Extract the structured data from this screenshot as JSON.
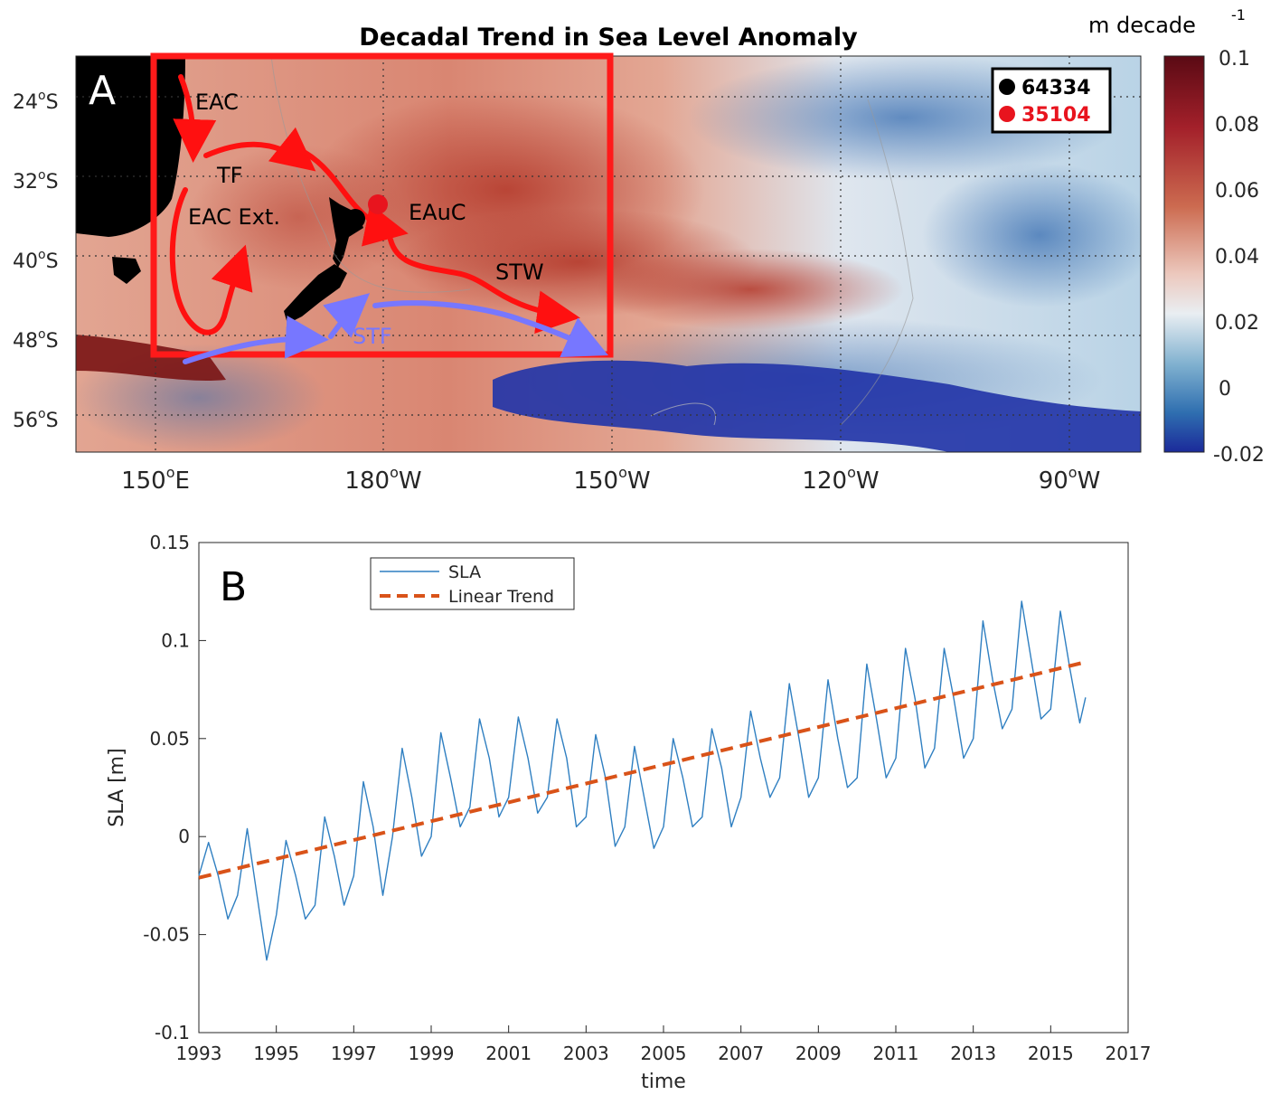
{
  "panel_a": {
    "panel_label": "A",
    "title": "Decadal Trend in Sea Level Anomaly",
    "colorbar_unit": "m decade",
    "colorbar_unit_sup": "-1",
    "colorbar_ticks": [
      "0.1",
      "0.08",
      "0.06",
      "0.04",
      "0.02",
      "0",
      "-0.02"
    ],
    "lat_ticks": [
      "24",
      "32",
      "40",
      "48",
      "56"
    ],
    "lat_suffix": "S",
    "lon_ticks": [
      "150",
      "180",
      "150",
      "120",
      "90"
    ],
    "lon_suffixes": [
      "E",
      "W",
      "W",
      "W",
      "W"
    ],
    "degree_symbol": "o",
    "legend": [
      {
        "label": "64334",
        "color": "#000000"
      },
      {
        "label": "35104",
        "color": "#e8141e"
      }
    ],
    "annotations": {
      "eac": "EAC",
      "tf": "TF",
      "eac_ext": "EAC Ext.",
      "eauc": "EAuC",
      "stw": "STW",
      "stf": "STF"
    },
    "colors": {
      "warm": "#b2402a",
      "cool": "#2233aa",
      "arrow_red": "#ff1010",
      "arrow_blue": "#7777ff",
      "box_red": "#ff1a1a"
    }
  },
  "chart_data": {
    "type": "line",
    "panel_label": "B",
    "xlabel": "time",
    "ylabel": "SLA [m]",
    "xlim": [
      1993,
      2017
    ],
    "ylim": [
      -0.1,
      0.15
    ],
    "xticks": [
      1993,
      1995,
      1997,
      1999,
      2001,
      2003,
      2005,
      2007,
      2009,
      2011,
      2013,
      2015,
      2017
    ],
    "yticks": [
      -0.1,
      -0.05,
      0,
      0.05,
      0.1,
      0.15
    ],
    "ytick_labels": [
      "-0.1",
      "-0.05",
      "0",
      "0.05",
      "0.1",
      "0.15"
    ],
    "legend_position": "top-left",
    "series": [
      {
        "name": "SLA",
        "color": "#2f7fc1",
        "style": "solid",
        "x": [
          1993.0,
          1993.25,
          1993.5,
          1993.75,
          1994.0,
          1994.25,
          1994.5,
          1994.75,
          1995.0,
          1995.25,
          1995.5,
          1995.75,
          1996.0,
          1996.25,
          1996.5,
          1996.75,
          1997.0,
          1997.25,
          1997.5,
          1997.75,
          1998.0,
          1998.25,
          1998.5,
          1998.75,
          1999.0,
          1999.25,
          1999.5,
          1999.75,
          2000.0,
          2000.25,
          2000.5,
          2000.75,
          2001.0,
          2001.25,
          2001.5,
          2001.75,
          2002.0,
          2002.25,
          2002.5,
          2002.75,
          2003.0,
          2003.25,
          2003.5,
          2003.75,
          2004.0,
          2004.25,
          2004.5,
          2004.75,
          2005.0,
          2005.25,
          2005.5,
          2005.75,
          2006.0,
          2006.25,
          2006.5,
          2006.75,
          2007.0,
          2007.25,
          2007.5,
          2007.75,
          2008.0,
          2008.25,
          2008.5,
          2008.75,
          2009.0,
          2009.25,
          2009.5,
          2009.75,
          2010.0,
          2010.25,
          2010.5,
          2010.75,
          2011.0,
          2011.25,
          2011.5,
          2011.75,
          2012.0,
          2012.25,
          2012.5,
          2012.75,
          2013.0,
          2013.25,
          2013.5,
          2013.75,
          2014.0,
          2014.25,
          2014.5,
          2014.75,
          2015.0,
          2015.25,
          2015.5,
          2015.75,
          2015.9
        ],
        "values": [
          -0.02,
          -0.003,
          -0.02,
          -0.042,
          -0.03,
          0.004,
          -0.03,
          -0.063,
          -0.04,
          -0.002,
          -0.02,
          -0.042,
          -0.035,
          0.01,
          -0.01,
          -0.035,
          -0.02,
          0.028,
          0.005,
          -0.03,
          0.0,
          0.045,
          0.02,
          -0.01,
          0.0,
          0.053,
          0.03,
          0.005,
          0.015,
          0.06,
          0.04,
          0.01,
          0.02,
          0.061,
          0.04,
          0.012,
          0.02,
          0.06,
          0.04,
          0.005,
          0.01,
          0.052,
          0.03,
          -0.005,
          0.005,
          0.046,
          0.02,
          -0.006,
          0.005,
          0.05,
          0.03,
          0.005,
          0.01,
          0.055,
          0.035,
          0.005,
          0.02,
          0.064,
          0.04,
          0.02,
          0.03,
          0.078,
          0.05,
          0.02,
          0.03,
          0.08,
          0.05,
          0.025,
          0.03,
          0.088,
          0.06,
          0.03,
          0.04,
          0.096,
          0.07,
          0.035,
          0.045,
          0.096,
          0.07,
          0.04,
          0.05,
          0.11,
          0.08,
          0.055,
          0.065,
          0.12,
          0.09,
          0.06,
          0.065,
          0.115,
          0.085,
          0.058,
          0.071
        ]
      },
      {
        "name": "Linear Trend",
        "color": "#d95319",
        "style": "dashed",
        "x": [
          1993.0,
          2015.9
        ],
        "values": [
          -0.021,
          0.089
        ]
      }
    ]
  }
}
